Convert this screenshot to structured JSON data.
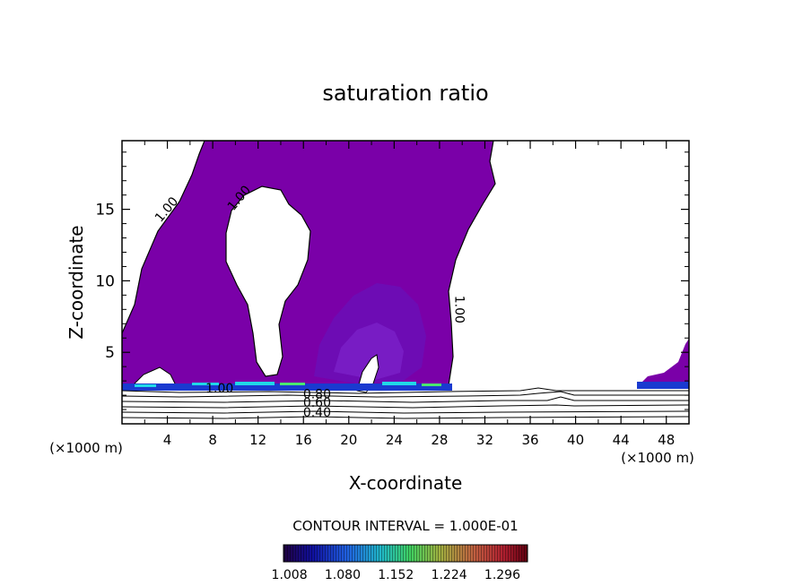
{
  "chart_data": {
    "type": "heatmap",
    "title": "saturation ratio",
    "xlabel": "X-coordinate",
    "ylabel": "Z-coordinate",
    "x_unit_left": "(×1000 m)",
    "x_unit_right": "(×1000 m)",
    "xlim": [
      0,
      50
    ],
    "ylim": [
      0,
      19.8
    ],
    "x_ticks": [
      "4",
      "8",
      "12",
      "16",
      "20",
      "24",
      "28",
      "32",
      "36",
      "40",
      "44",
      "48"
    ],
    "x_tick_values": [
      4,
      8,
      12,
      16,
      20,
      24,
      28,
      32,
      36,
      40,
      44,
      48
    ],
    "y_ticks": [
      "5",
      "10",
      "15"
    ],
    "y_tick_values": [
      5,
      10,
      15
    ],
    "contour_interval_text": "CONTOUR INTERVAL = 1.000E-01",
    "colorbar_labels": [
      "1.008",
      "1.080",
      "1.152",
      "1.224",
      "1.296"
    ],
    "colorbar_values": [
      1.008,
      1.08,
      1.152,
      1.224,
      1.296
    ],
    "contour_labels": [
      {
        "text": "1.00",
        "x": 4.2,
        "z": 14.8,
        "angle": -50
      },
      {
        "text": "1.00",
        "x": 10.6,
        "z": 15.6,
        "angle": -50
      },
      {
        "text": "1.00",
        "x": 29.4,
        "z": 8.0,
        "angle": 90
      },
      {
        "text": "1.00",
        "x": 8.6,
        "z": 2.2,
        "angle": 0
      },
      {
        "text": "0.80",
        "x": 17.2,
        "z": 1.8,
        "angle": 0
      },
      {
        "text": "0.60",
        "x": 17.2,
        "z": 1.2,
        "angle": 0
      },
      {
        "text": "0.40",
        "x": 17.2,
        "z": 0.5,
        "angle": 0
      }
    ],
    "colors": {
      "supersaturated_fill": "#7a00a8",
      "inner_shade": "#6a10b8",
      "core_shade": "#7a20c8",
      "band_blue": "#1a4ae0",
      "band_cyan": "#20d8e8",
      "band_green": "#4ae870",
      "contour": "#000000"
    }
  }
}
